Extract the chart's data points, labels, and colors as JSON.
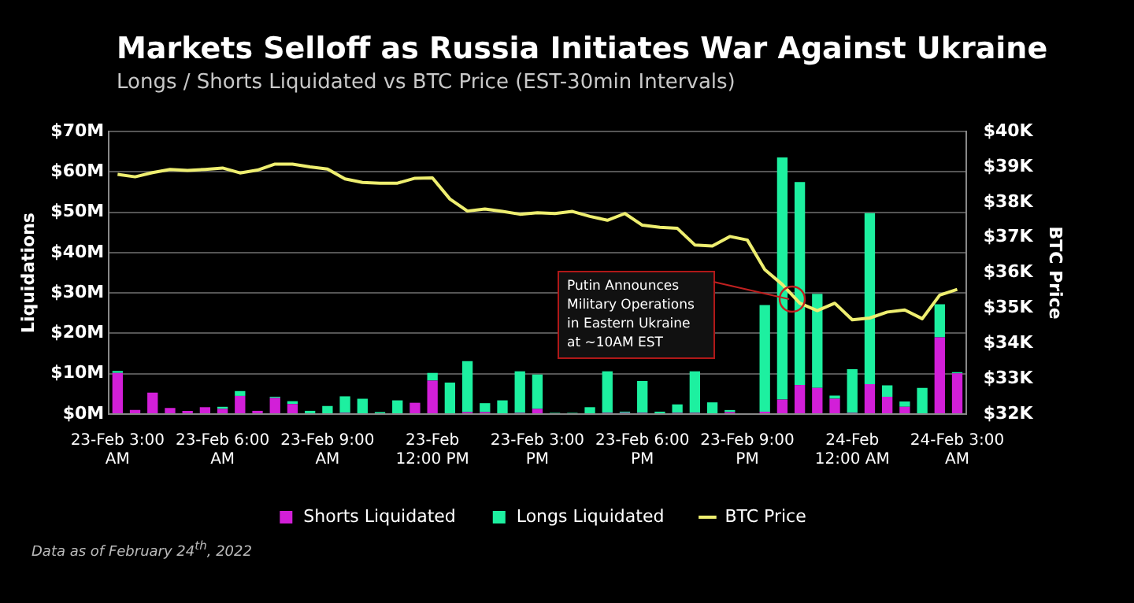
{
  "chart_data": {
    "type": "bar",
    "title": "Markets Selloff as Russia Initiates War Against Ukraine",
    "subtitle": "Longs / Shorts Liquidated vs BTC Price (EST-30min Intervals)",
    "ylabel": "Liquidations",
    "y2label": "BTC Price",
    "categories": [
      "23-Feb 3:00 AM",
      null,
      null,
      null,
      null,
      null,
      "23-Feb 6:00 AM",
      null,
      null,
      null,
      null,
      null,
      "23-Feb 9:00 AM",
      null,
      null,
      null,
      null,
      null,
      "23-Feb 12:00 PM",
      null,
      null,
      null,
      null,
      null,
      "23-Feb 3:00 PM",
      null,
      null,
      null,
      null,
      null,
      "23-Feb 6:00 PM",
      null,
      null,
      null,
      null,
      null,
      "23-Feb 9:00 PM",
      null,
      null,
      null,
      null,
      null,
      "24-Feb 12:00 AM",
      null,
      null,
      null,
      null,
      null,
      "24-Feb 3:00 AM"
    ],
    "series": [
      {
        "name": "Shorts Liquidated",
        "color": "#d21fd8",
        "values": [
          10.2,
          1.0,
          5.3,
          1.5,
          0.8,
          1.7,
          1.3,
          4.5,
          0.8,
          4.0,
          2.5,
          0,
          0,
          0.3,
          0,
          0,
          0,
          2.8,
          8.3,
          0,
          0.5,
          0.5,
          0,
          0.3,
          1.3,
          0,
          0,
          0,
          0.3,
          0.3,
          0.3,
          0,
          0.3,
          0.3,
          0,
          0.5,
          0,
          0.6,
          3.6,
          7.2,
          6.5,
          3.8,
          0.3,
          7.4,
          4.3,
          1.8,
          0,
          19.0,
          10.1
        ]
      },
      {
        "name": "Longs Liquidated",
        "color": "#1df0a0",
        "values": [
          0.5,
          0,
          0,
          0,
          0,
          0,
          0.5,
          1.2,
          0,
          0.3,
          0.7,
          0.8,
          2.0,
          4.1,
          3.8,
          0.5,
          3.4,
          0,
          1.9,
          7.8,
          12.6,
          2.2,
          3.4,
          10.3,
          8.5,
          0.3,
          0.3,
          1.7,
          10.3,
          0.3,
          7.9,
          0.6,
          2.1,
          10.3,
          2.9,
          0.5,
          0.2,
          26.4,
          60.0,
          50.3,
          23.3,
          0.8,
          10.8,
          42.4,
          2.8,
          1.3,
          6.5,
          8.2,
          0.3
        ]
      },
      {
        "name": "BTC Price",
        "type": "line",
        "axis": "y2",
        "color": "#eeee70",
        "values": [
          38.79,
          38.72,
          38.84,
          38.93,
          38.9,
          38.93,
          38.97,
          38.83,
          38.91,
          39.08,
          39.08,
          39.0,
          38.94,
          38.66,
          38.56,
          38.54,
          38.54,
          38.68,
          38.69,
          38.09,
          37.75,
          37.81,
          37.74,
          37.66,
          37.7,
          37.68,
          37.74,
          37.6,
          37.49,
          37.68,
          37.35,
          37.29,
          37.26,
          36.79,
          36.76,
          37.03,
          36.93,
          36.09,
          35.67,
          35.14,
          34.93,
          35.14,
          34.67,
          34.72,
          34.89,
          34.95,
          34.7,
          35.37,
          35.53
        ]
      }
    ],
    "stacked": true,
    "ylim": [
      0,
      70
    ],
    "yticks": [
      {
        "value": 0,
        "label": "$0M"
      },
      {
        "value": 10,
        "label": "$10M"
      },
      {
        "value": 20,
        "label": "$20M"
      },
      {
        "value": 30,
        "label": "$30M"
      },
      {
        "value": 40,
        "label": "$40M"
      },
      {
        "value": 50,
        "label": "$50M"
      },
      {
        "value": 60,
        "label": "$60M"
      },
      {
        "value": 70,
        "label": "$70M"
      }
    ],
    "y2lim": [
      32,
      40
    ],
    "y2ticks": [
      {
        "value": 32,
        "label": "$32K"
      },
      {
        "value": 33,
        "label": "$33K"
      },
      {
        "value": 34,
        "label": "$34K"
      },
      {
        "value": 35,
        "label": "$35K"
      },
      {
        "value": 36,
        "label": "$36K"
      },
      {
        "value": 37,
        "label": "$37K"
      },
      {
        "value": 38,
        "label": "$38K"
      },
      {
        "value": 39,
        "label": "$39K"
      },
      {
        "value": 40,
        "label": "$40K"
      }
    ],
    "grid": "y",
    "legend": "bottom",
    "marker": "none",
    "line_style": "solid",
    "annotations": [
      "Putin Announces Military Operations in Eastern Ukraine at ~10AM EST",
      "Data as of February 24$^{th}$, 2022"
    ]
  }
}
